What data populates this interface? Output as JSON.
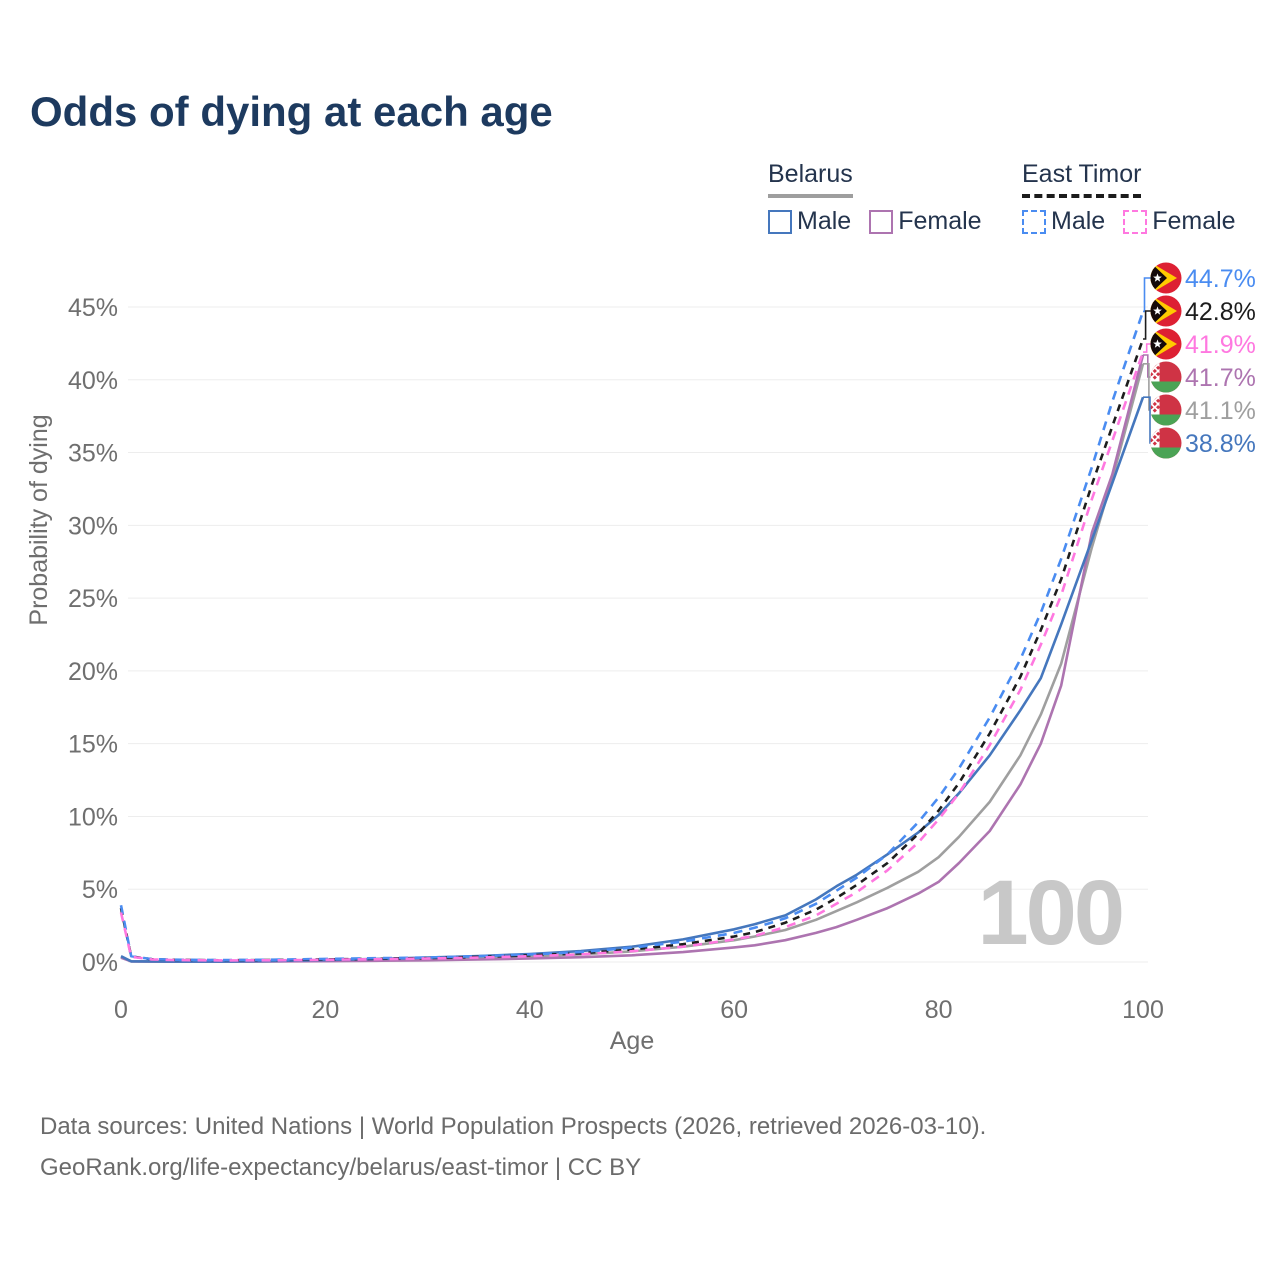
{
  "title": "Odds of dying at each age",
  "legend": {
    "groups": [
      {
        "name": "Belarus",
        "line_style": "solid",
        "underline_color": "#9e9e9e",
        "items": [
          {
            "label": "Male",
            "color": "#4577bd"
          },
          {
            "label": "Female",
            "color": "#ad74b0"
          }
        ]
      },
      {
        "name": "East Timor",
        "line_style": "dashed",
        "underline_color": "#1c1c1c",
        "items": [
          {
            "label": "Male",
            "color": "#4a8cf1"
          },
          {
            "label": "Female",
            "color": "#ff78e0"
          }
        ]
      }
    ]
  },
  "chart_data": {
    "type": "line",
    "title": "Odds of dying at each age",
    "xlabel": "Age",
    "ylabel": "Probability of dying",
    "x_ticks": [
      0,
      20,
      40,
      60,
      80,
      100
    ],
    "y_ticks": [
      "0%",
      "5%",
      "10%",
      "15%",
      "20%",
      "25%",
      "30%",
      "35%",
      "40%",
      "45%"
    ],
    "xlim": [
      0,
      100
    ],
    "ylim": [
      0,
      45
    ],
    "grid": true,
    "legend_position": "top-right",
    "watermark": "100",
    "unit": "percent",
    "series": [
      {
        "id": "belarus-total",
        "name": "Belarus",
        "country": "Belarus",
        "sex": "Both",
        "color": "#9f9f9f",
        "dash": null,
        "flag": "belarus",
        "end_label": "41.1%",
        "points": [
          [
            0,
            0.35
          ],
          [
            1,
            0.045
          ],
          [
            3,
            0.03
          ],
          [
            5,
            0.025
          ],
          [
            10,
            0.025
          ],
          [
            15,
            0.05
          ],
          [
            20,
            0.09
          ],
          [
            25,
            0.15
          ],
          [
            30,
            0.21
          ],
          [
            35,
            0.29
          ],
          [
            40,
            0.39
          ],
          [
            45,
            0.53
          ],
          [
            50,
            0.73
          ],
          [
            55,
            1.05
          ],
          [
            60,
            1.5
          ],
          [
            62,
            1.75
          ],
          [
            65,
            2.2
          ],
          [
            68,
            2.9
          ],
          [
            70,
            3.5
          ],
          [
            72,
            4.1
          ],
          [
            75,
            5.1
          ],
          [
            78,
            6.2
          ],
          [
            80,
            7.2
          ],
          [
            82,
            8.6
          ],
          [
            85,
            11.0
          ],
          [
            88,
            14.2
          ],
          [
            90,
            17.0
          ],
          [
            92,
            20.5
          ],
          [
            95,
            28.5
          ],
          [
            97,
            33.2
          ],
          [
            100,
            41.1
          ]
        ]
      },
      {
        "id": "belarus-female",
        "name": "Belarus Female",
        "country": "Belarus",
        "sex": "Female",
        "color": "#ad74b0",
        "dash": null,
        "flag": "belarus",
        "end_label": "41.7%",
        "points": [
          [
            0,
            0.3
          ],
          [
            1,
            0.04
          ],
          [
            3,
            0.025
          ],
          [
            5,
            0.02
          ],
          [
            10,
            0.02
          ],
          [
            15,
            0.035
          ],
          [
            20,
            0.055
          ],
          [
            25,
            0.08
          ],
          [
            30,
            0.12
          ],
          [
            35,
            0.17
          ],
          [
            40,
            0.24
          ],
          [
            45,
            0.33
          ],
          [
            50,
            0.46
          ],
          [
            55,
            0.68
          ],
          [
            60,
            1.0
          ],
          [
            62,
            1.15
          ],
          [
            65,
            1.5
          ],
          [
            68,
            2.0
          ],
          [
            70,
            2.4
          ],
          [
            72,
            2.9
          ],
          [
            75,
            3.7
          ],
          [
            78,
            4.7
          ],
          [
            80,
            5.5
          ],
          [
            82,
            6.8
          ],
          [
            85,
            9.0
          ],
          [
            88,
            12.2
          ],
          [
            90,
            15.0
          ],
          [
            92,
            19.0
          ],
          [
            95,
            29.5
          ],
          [
            97,
            33.5
          ],
          [
            100,
            41.7
          ]
        ]
      },
      {
        "id": "belarus-male",
        "name": "Belarus Male",
        "country": "Belarus",
        "sex": "Male",
        "color": "#4577bd",
        "dash": null,
        "flag": "belarus",
        "end_label": "38.8%",
        "points": [
          [
            0,
            0.4
          ],
          [
            1,
            0.05
          ],
          [
            3,
            0.04
          ],
          [
            5,
            0.03
          ],
          [
            10,
            0.03
          ],
          [
            15,
            0.07
          ],
          [
            20,
            0.13
          ],
          [
            25,
            0.21
          ],
          [
            30,
            0.3
          ],
          [
            35,
            0.41
          ],
          [
            40,
            0.55
          ],
          [
            45,
            0.75
          ],
          [
            50,
            1.05
          ],
          [
            55,
            1.55
          ],
          [
            60,
            2.25
          ],
          [
            62,
            2.6
          ],
          [
            65,
            3.2
          ],
          [
            68,
            4.3
          ],
          [
            70,
            5.2
          ],
          [
            72,
            6.0
          ],
          [
            75,
            7.4
          ],
          [
            78,
            8.9
          ],
          [
            80,
            10.1
          ],
          [
            82,
            11.6
          ],
          [
            85,
            14.2
          ],
          [
            88,
            17.3
          ],
          [
            90,
            19.5
          ],
          [
            92,
            23.2
          ],
          [
            95,
            29.0
          ],
          [
            97,
            32.9
          ],
          [
            100,
            38.8
          ]
        ]
      },
      {
        "id": "east-timor-total",
        "name": "East Timor",
        "country": "East Timor",
        "sex": "Both",
        "color": "#1d1d1d",
        "dash": [
          7,
          6
        ],
        "flag": "east-timor",
        "end_label": "42.8%",
        "points": [
          [
            0,
            3.7
          ],
          [
            1,
            0.38
          ],
          [
            3,
            0.19
          ],
          [
            5,
            0.15
          ],
          [
            10,
            0.12
          ],
          [
            15,
            0.14
          ],
          [
            20,
            0.18
          ],
          [
            25,
            0.22
          ],
          [
            30,
            0.27
          ],
          [
            35,
            0.35
          ],
          [
            40,
            0.46
          ],
          [
            45,
            0.6
          ],
          [
            50,
            0.86
          ],
          [
            55,
            1.22
          ],
          [
            60,
            1.75
          ],
          [
            62,
            2.05
          ],
          [
            65,
            2.7
          ],
          [
            68,
            3.6
          ],
          [
            70,
            4.4
          ],
          [
            72,
            5.3
          ],
          [
            75,
            6.8
          ],
          [
            78,
            8.8
          ],
          [
            80,
            10.4
          ],
          [
            82,
            12.3
          ],
          [
            85,
            15.7
          ],
          [
            88,
            19.6
          ],
          [
            90,
            22.8
          ],
          [
            92,
            26.3
          ],
          [
            95,
            32.8
          ],
          [
            97,
            36.8
          ],
          [
            100,
            42.8
          ]
        ]
      },
      {
        "id": "east-timor-male",
        "name": "East Timor Male",
        "country": "East Timor",
        "sex": "Male",
        "color": "#4a8cf1",
        "dash": [
          9,
          7
        ],
        "flag": "east-timor",
        "end_label": "44.7%",
        "points": [
          [
            0,
            3.9
          ],
          [
            1,
            0.4
          ],
          [
            3,
            0.2
          ],
          [
            5,
            0.16
          ],
          [
            10,
            0.13
          ],
          [
            15,
            0.16
          ],
          [
            20,
            0.21
          ],
          [
            25,
            0.26
          ],
          [
            30,
            0.31
          ],
          [
            35,
            0.4
          ],
          [
            40,
            0.52
          ],
          [
            45,
            0.68
          ],
          [
            50,
            0.98
          ],
          [
            55,
            1.4
          ],
          [
            60,
            2.0
          ],
          [
            62,
            2.35
          ],
          [
            65,
            3.0
          ],
          [
            68,
            4.0
          ],
          [
            70,
            4.9
          ],
          [
            72,
            5.8
          ],
          [
            75,
            7.4
          ],
          [
            78,
            9.6
          ],
          [
            80,
            11.3
          ],
          [
            82,
            13.3
          ],
          [
            85,
            16.8
          ],
          [
            88,
            20.8
          ],
          [
            90,
            24.0
          ],
          [
            92,
            27.7
          ],
          [
            95,
            34.0
          ],
          [
            97,
            38.5
          ],
          [
            100,
            44.7
          ]
        ]
      },
      {
        "id": "east-timor-female",
        "name": "East Timor Female",
        "country": "East Timor",
        "sex": "Female",
        "color": "#ff78e0",
        "dash": [
          9,
          7
        ],
        "flag": "east-timor",
        "end_label": "41.9%",
        "points": [
          [
            0,
            3.4
          ],
          [
            1,
            0.36
          ],
          [
            3,
            0.18
          ],
          [
            5,
            0.14
          ],
          [
            10,
            0.11
          ],
          [
            15,
            0.12
          ],
          [
            20,
            0.15
          ],
          [
            25,
            0.19
          ],
          [
            30,
            0.24
          ],
          [
            35,
            0.3
          ],
          [
            40,
            0.4
          ],
          [
            45,
            0.52
          ],
          [
            50,
            0.74
          ],
          [
            55,
            1.05
          ],
          [
            60,
            1.55
          ],
          [
            62,
            1.8
          ],
          [
            65,
            2.4
          ],
          [
            68,
            3.2
          ],
          [
            70,
            4.0
          ],
          [
            72,
            4.8
          ],
          [
            75,
            6.3
          ],
          [
            78,
            8.2
          ],
          [
            80,
            9.8
          ],
          [
            82,
            11.6
          ],
          [
            85,
            14.9
          ],
          [
            88,
            18.7
          ],
          [
            90,
            21.8
          ],
          [
            92,
            25.2
          ],
          [
            95,
            31.8
          ],
          [
            97,
            35.8
          ],
          [
            100,
            41.9
          ]
        ]
      }
    ]
  },
  "footer": {
    "line1": "Data sources: United Nations | World Population Prospects (2026, retrieved 2026-03-10).",
    "line2": "GeoRank.org/life-expectancy/belarus/east-timor | CC BY"
  }
}
